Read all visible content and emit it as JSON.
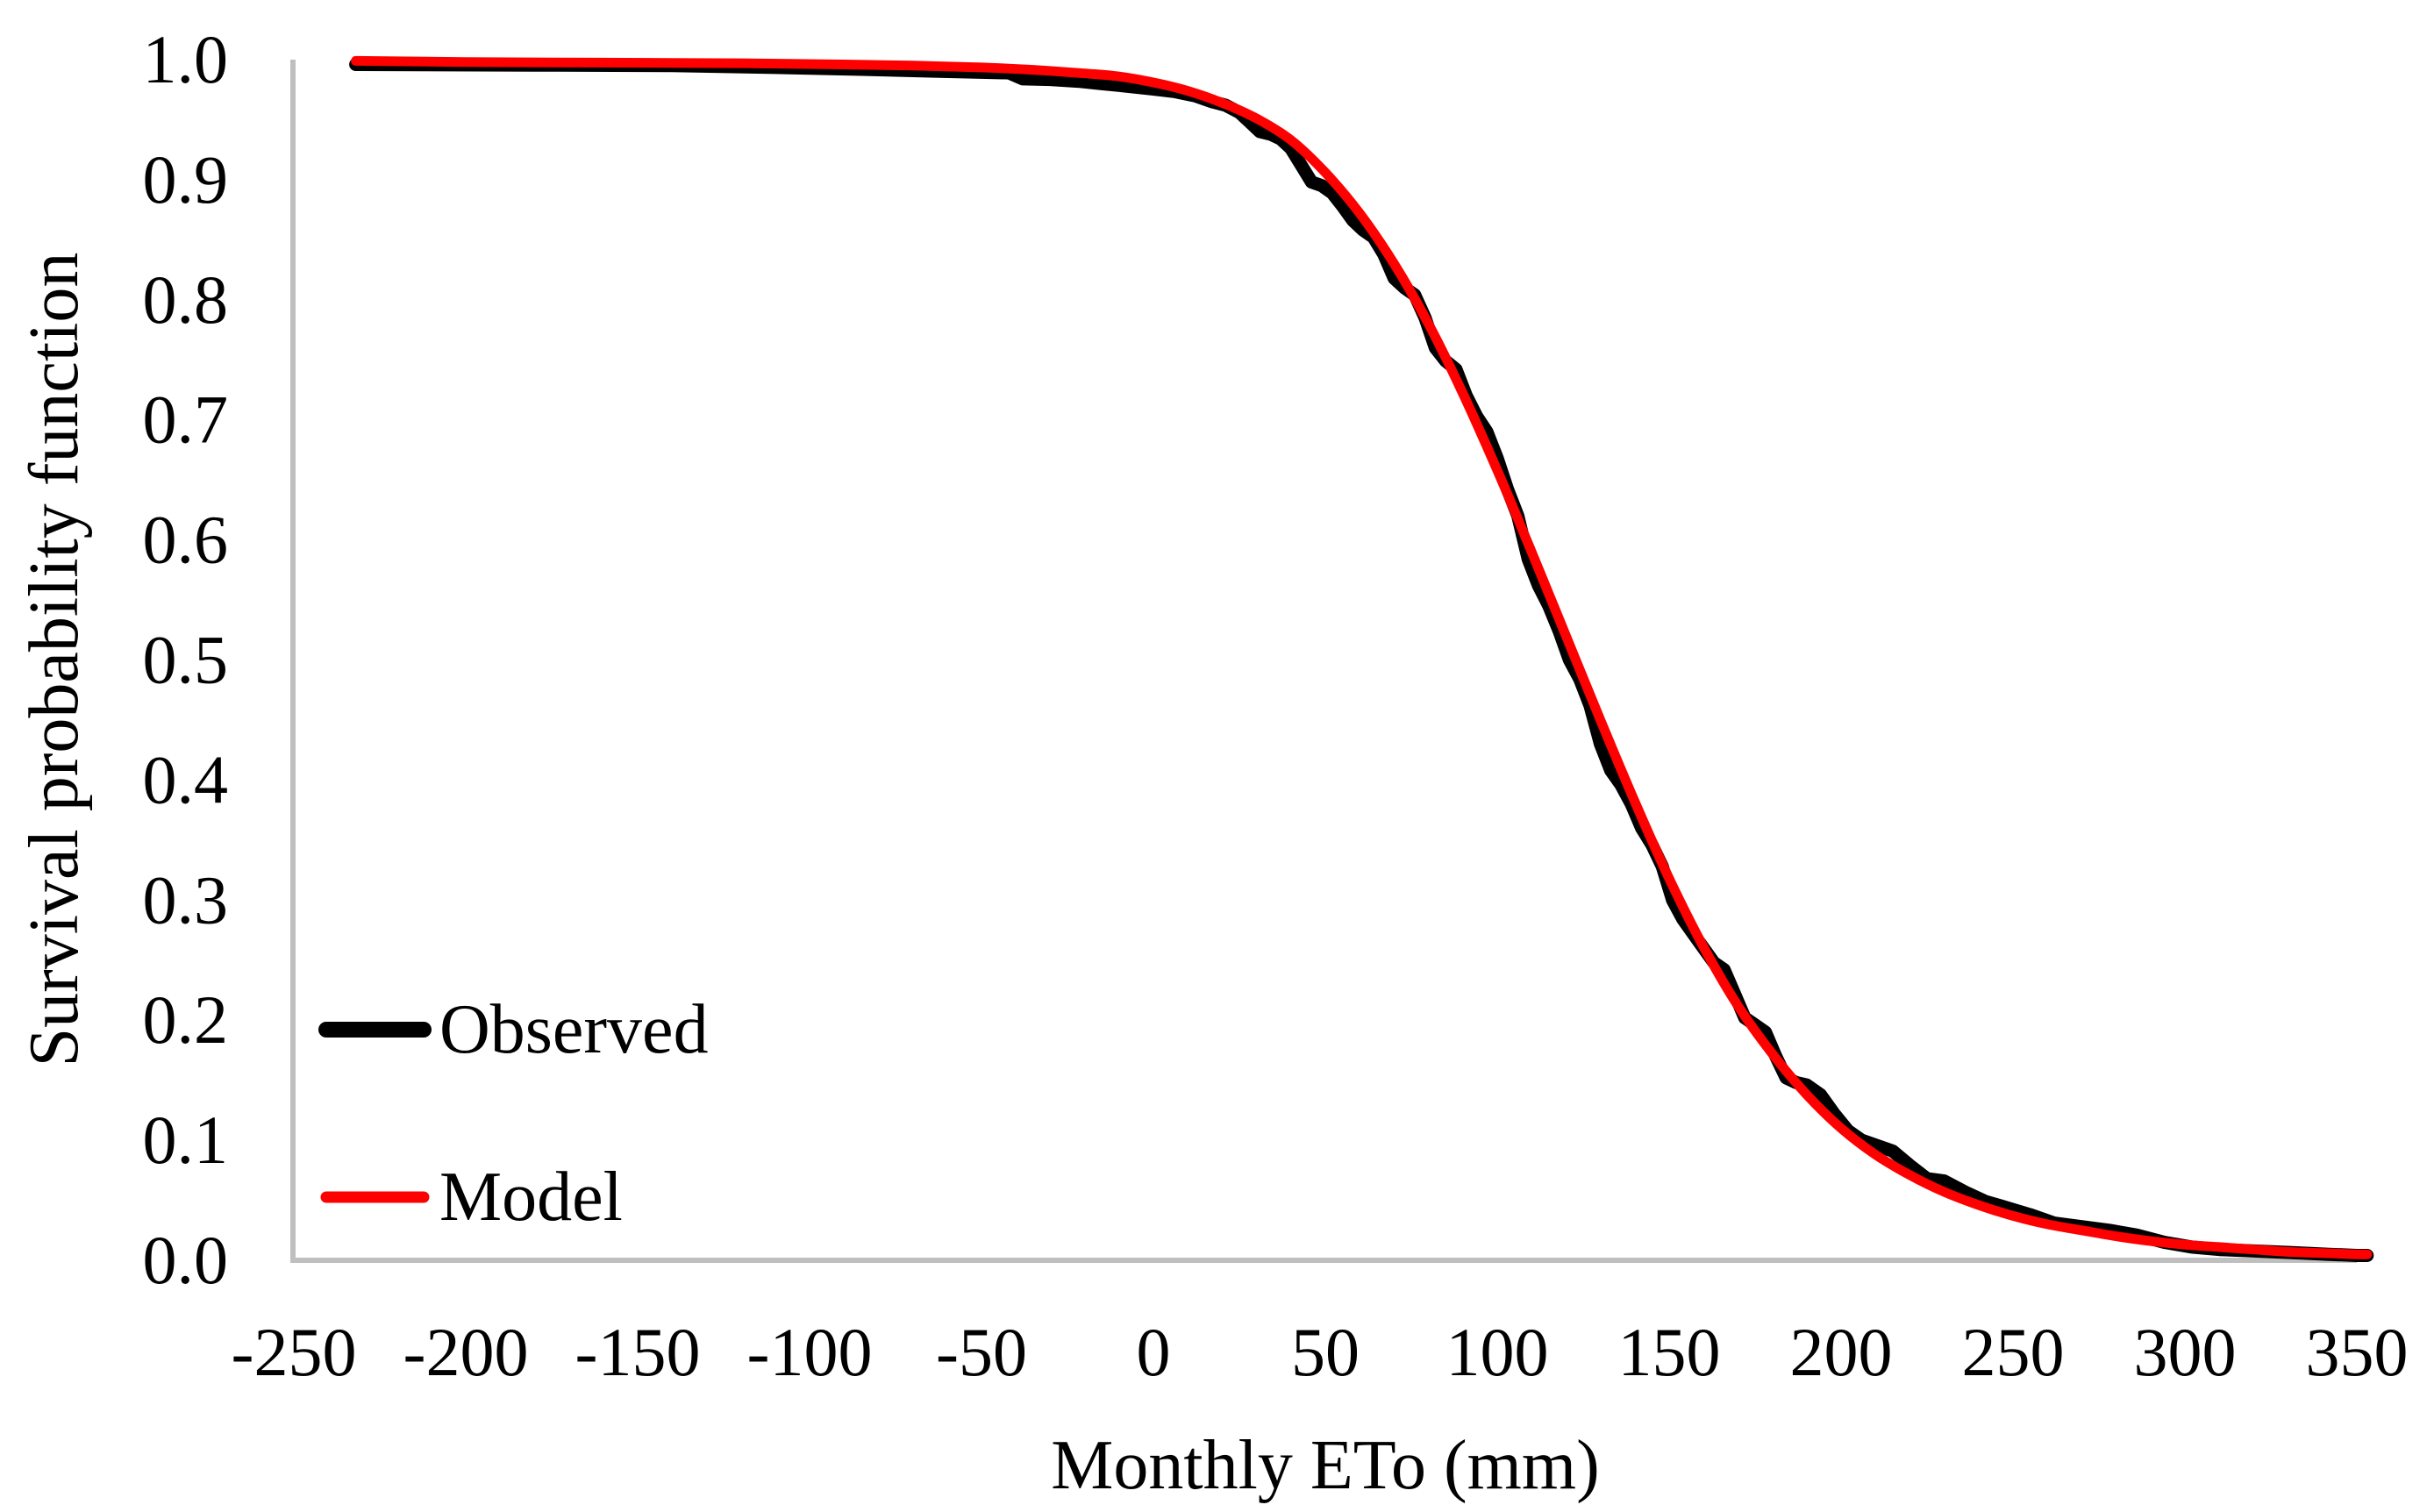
{
  "page": {
    "background": "#FFFFFF",
    "text_color": "#000000"
  },
  "chart_data": {
    "type": "line",
    "title": "",
    "xlabel": "Monthly ETo (mm)",
    "ylabel": "Survival probability function",
    "xlim": [
      -250,
      350
    ],
    "ylim": [
      0.0,
      1.0
    ],
    "grid": false,
    "axis_color": "#BFBFBF",
    "x_tick_values": [
      -250,
      -200,
      -150,
      -100,
      -50,
      0,
      50,
      100,
      150,
      200,
      250,
      300,
      350
    ],
    "x_tick_labels": [
      "-250",
      "-200",
      "-150",
      "-100",
      "-50",
      "0",
      "50",
      "100",
      "150",
      "200",
      "250",
      "300",
      "350"
    ],
    "y_tick_values": [
      0.0,
      0.1,
      0.2,
      0.3,
      0.4,
      0.5,
      0.6,
      0.7,
      0.8,
      0.9,
      1.0
    ],
    "y_tick_labels": [
      "0.0",
      "0.1",
      "0.2",
      "0.3",
      "0.4",
      "0.5",
      "0.6",
      "0.7",
      "0.8",
      "0.9",
      "1.0"
    ],
    "legend": {
      "position": "inside-lower-left",
      "entries": [
        "Observed",
        "Model"
      ]
    },
    "series": [
      {
        "name": "Observed",
        "color": "#000000",
        "line_width": 15,
        "smooth": false,
        "points": [
          [
            -232,
            0.996
          ],
          [
            -180,
            0.9955
          ],
          [
            -140,
            0.995
          ],
          [
            -110,
            0.9935
          ],
          [
            -85,
            0.992
          ],
          [
            -65,
            0.9905
          ],
          [
            -50,
            0.9895
          ],
          [
            -42,
            0.989
          ],
          [
            -38,
            0.984
          ],
          [
            -30,
            0.9835
          ],
          [
            -22,
            0.982
          ],
          [
            -15,
            0.98
          ],
          [
            -8,
            0.978
          ],
          [
            0,
            0.9755
          ],
          [
            6,
            0.9735
          ],
          [
            12,
            0.97
          ],
          [
            17,
            0.965
          ],
          [
            21,
            0.962
          ],
          [
            25,
            0.956
          ],
          [
            28,
            0.948
          ],
          [
            31,
            0.94
          ],
          [
            34,
            0.938
          ],
          [
            37,
            0.934
          ],
          [
            40,
            0.926
          ],
          [
            43,
            0.912
          ],
          [
            46,
            0.898
          ],
          [
            49,
            0.895
          ],
          [
            52,
            0.889
          ],
          [
            55,
            0.878
          ],
          [
            58,
            0.866
          ],
          [
            61,
            0.858
          ],
          [
            64,
            0.852
          ],
          [
            67,
            0.838
          ],
          [
            70,
            0.818
          ],
          [
            73,
            0.81
          ],
          [
            76,
            0.804
          ],
          [
            79,
            0.785
          ],
          [
            82,
            0.76
          ],
          [
            85,
            0.749
          ],
          [
            88,
            0.742
          ],
          [
            91,
            0.72
          ],
          [
            94,
            0.703
          ],
          [
            97,
            0.69
          ],
          [
            100,
            0.668
          ],
          [
            103,
            0.642
          ],
          [
            106,
            0.62
          ],
          [
            109,
            0.584
          ],
          [
            112,
            0.562
          ],
          [
            115,
            0.545
          ],
          [
            118,
            0.524
          ],
          [
            121,
            0.5
          ],
          [
            124,
            0.484
          ],
          [
            127,
            0.462
          ],
          [
            130,
            0.43
          ],
          [
            133,
            0.408
          ],
          [
            136,
            0.396
          ],
          [
            139,
            0.38
          ],
          [
            142,
            0.36
          ],
          [
            145,
            0.346
          ],
          [
            148,
            0.328
          ],
          [
            151,
            0.3
          ],
          [
            154,
            0.284
          ],
          [
            157,
            0.272
          ],
          [
            160,
            0.26
          ],
          [
            163,
            0.248
          ],
          [
            166,
            0.242
          ],
          [
            169,
            0.222
          ],
          [
            172,
            0.202
          ],
          [
            175,
            0.196
          ],
          [
            178,
            0.19
          ],
          [
            181,
            0.17
          ],
          [
            184,
            0.152
          ],
          [
            187,
            0.148
          ],
          [
            190,
            0.146
          ],
          [
            194,
            0.138
          ],
          [
            198,
            0.122
          ],
          [
            202,
            0.108
          ],
          [
            206,
            0.1
          ],
          [
            210,
            0.096
          ],
          [
            215,
            0.091
          ],
          [
            220,
            0.079
          ],
          [
            225,
            0.068
          ],
          [
            230,
            0.066
          ],
          [
            236,
            0.057
          ],
          [
            242,
            0.049
          ],
          [
            248,
            0.044
          ],
          [
            255,
            0.038
          ],
          [
            262,
            0.031
          ],
          [
            270,
            0.028
          ],
          [
            278,
            0.025
          ],
          [
            286,
            0.021
          ],
          [
            294,
            0.015
          ],
          [
            302,
            0.011
          ],
          [
            310,
            0.009
          ],
          [
            318,
            0.008
          ],
          [
            326,
            0.007
          ],
          [
            334,
            0.006
          ],
          [
            342,
            0.005
          ],
          [
            350,
            0.004
          ],
          [
            353,
            0.004
          ]
        ]
      },
      {
        "name": "Model",
        "color": "#FF0000",
        "line_width": 11,
        "smooth": true,
        "points": [
          [
            -232,
            0.999
          ],
          [
            -200,
            0.998
          ],
          [
            -160,
            0.9975
          ],
          [
            -120,
            0.997
          ],
          [
            -90,
            0.996
          ],
          [
            -70,
            0.995
          ],
          [
            -50,
            0.9935
          ],
          [
            -35,
            0.9915
          ],
          [
            -20,
            0.9885
          ],
          [
            -10,
            0.986
          ],
          [
            0,
            0.981
          ],
          [
            10,
            0.974
          ],
          [
            20,
            0.964
          ],
          [
            30,
            0.951
          ],
          [
            40,
            0.933
          ],
          [
            50,
            0.906
          ],
          [
            60,
            0.872
          ],
          [
            70,
            0.83
          ],
          [
            80,
            0.78
          ],
          [
            90,
            0.722
          ],
          [
            100,
            0.658
          ],
          [
            110,
            0.59
          ],
          [
            120,
            0.52
          ],
          [
            130,
            0.45
          ],
          [
            140,
            0.382
          ],
          [
            150,
            0.318
          ],
          [
            160,
            0.261
          ],
          [
            170,
            0.212
          ],
          [
            180,
            0.172
          ],
          [
            190,
            0.138
          ],
          [
            200,
            0.11
          ],
          [
            210,
            0.088
          ],
          [
            220,
            0.071
          ],
          [
            230,
            0.057
          ],
          [
            240,
            0.046
          ],
          [
            250,
            0.037
          ],
          [
            260,
            0.03
          ],
          [
            270,
            0.025
          ],
          [
            280,
            0.02
          ],
          [
            290,
            0.016
          ],
          [
            300,
            0.013
          ],
          [
            310,
            0.011
          ],
          [
            320,
            0.009
          ],
          [
            330,
            0.007
          ],
          [
            340,
            0.006
          ],
          [
            350,
            0.005
          ],
          [
            353,
            0.005
          ]
        ]
      }
    ]
  }
}
